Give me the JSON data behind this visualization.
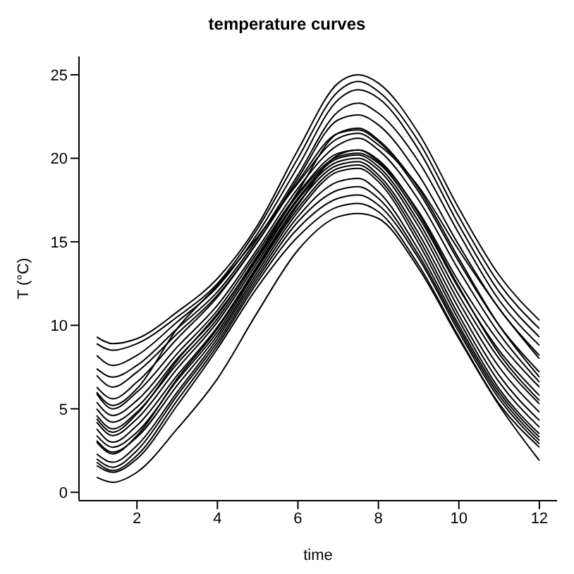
{
  "chart_data": {
    "type": "line",
    "title": "temperature curves",
    "xlabel": "time",
    "ylabel": "T (°C)",
    "x": [
      1,
      1.4,
      2,
      3,
      4,
      5,
      6,
      7,
      7.5,
      8,
      9,
      10,
      11,
      12
    ],
    "xlim": [
      0.56,
      12.44
    ],
    "xticks": [
      2,
      4,
      6,
      8,
      10,
      12
    ],
    "ylim": [
      -0.5,
      26.1
    ],
    "yticks": [
      0,
      5,
      10,
      15,
      20,
      25
    ],
    "grid": false,
    "series": [
      {
        "color": "#000000",
        "values": [
          9.3,
          8.9,
          9.2,
          10.8,
          12.8,
          16,
          20.5,
          24.5,
          25,
          24.5,
          21.5,
          17,
          13,
          10.3
        ]
      },
      {
        "color": "#000000",
        "values": [
          8.9,
          8.5,
          8.9,
          10.5,
          12.5,
          15.8,
          20,
          24,
          24.6,
          24,
          21,
          16.5,
          12.5,
          9.8
        ]
      },
      {
        "color": "#000000",
        "values": [
          8.2,
          7.6,
          8.2,
          10.2,
          12.3,
          15.5,
          19.5,
          23.5,
          24.1,
          23.6,
          20.5,
          16,
          12,
          9.3
        ]
      },
      {
        "color": "#000000",
        "values": [
          7.4,
          6.9,
          7.6,
          9.8,
          12,
          15.2,
          19,
          22.8,
          23.3,
          22.7,
          19.8,
          15.5,
          11.5,
          8.8
        ]
      },
      {
        "color": "#000000",
        "values": [
          7,
          6.3,
          7.2,
          9.5,
          11.8,
          15,
          18.8,
          22.3,
          22.6,
          22,
          19,
          14.8,
          11,
          8.2
        ]
      },
      {
        "color": "#000000",
        "values": [
          6.3,
          5.6,
          6.6,
          9.2,
          11.7,
          15,
          18.6,
          21.5,
          21.7,
          21,
          18,
          13.8,
          10,
          7.2
        ]
      },
      {
        "color": "#000000",
        "values": [
          5.9,
          5,
          6,
          8.7,
          11.2,
          14.6,
          18.2,
          20.8,
          21.2,
          20.5,
          17.5,
          13.3,
          9.5,
          6.6
        ]
      },
      {
        "color": "#000000",
        "values": [
          5.4,
          4.6,
          5.5,
          8.3,
          10.9,
          14.4,
          17.9,
          20.3,
          20.5,
          19.8,
          16.8,
          12.6,
          9,
          6.3
        ]
      },
      {
        "color": "#000000",
        "values": [
          5,
          4.2,
          5.1,
          8,
          10.6,
          14.2,
          17.8,
          20.1,
          20.3,
          19.7,
          16.5,
          12.2,
          8.5,
          5.8
        ]
      },
      {
        "color": "#000000",
        "values": [
          4.6,
          3.8,
          4.8,
          7.7,
          10.4,
          14,
          17.6,
          20,
          20.2,
          19.5,
          16.2,
          11.8,
          8,
          5.3
        ]
      },
      {
        "color": "#000000",
        "values": [
          4.2,
          3.4,
          4.4,
          7.4,
          10.2,
          13.8,
          17.5,
          19.8,
          20,
          19.3,
          15.9,
          11.4,
          7.5,
          4.8
        ]
      },
      {
        "color": "#000000",
        "values": [
          3.8,
          3,
          4,
          7,
          9.9,
          13.6,
          17.3,
          19.6,
          19.8,
          19,
          15.5,
          11,
          7,
          4.3
        ]
      },
      {
        "color": "#000000",
        "values": [
          3.4,
          2.7,
          3.6,
          6.7,
          9.6,
          13.4,
          17,
          19.4,
          19.6,
          18.8,
          15.2,
          10.6,
          6.6,
          3.9
        ]
      },
      {
        "color": "#000000",
        "values": [
          3.1,
          2.4,
          3.3,
          6.4,
          9.4,
          13.2,
          16.8,
          19.2,
          19.4,
          18.6,
          14.9,
          10.3,
          6.2,
          3.5
        ]
      },
      {
        "color": "#000000",
        "values": [
          2.3,
          1.8,
          2.8,
          6,
          9.2,
          13,
          16.5,
          18.6,
          18.8,
          18,
          14.5,
          10,
          6,
          3.3
        ]
      },
      {
        "color": "#000000",
        "values": [
          2,
          1.5,
          2.5,
          5.8,
          9,
          12.8,
          16.2,
          18.1,
          18.3,
          17.6,
          14.2,
          9.8,
          5.8,
          3.1
        ]
      },
      {
        "color": "#000000",
        "values": [
          1.8,
          1.3,
          2.2,
          5.5,
          8.8,
          12.6,
          15.8,
          17.6,
          17.8,
          17.2,
          14,
          9.6,
          5.6,
          2.9
        ]
      },
      {
        "color": "#000000",
        "values": [
          1.6,
          1.2,
          2,
          5.2,
          8.6,
          12.3,
          15.3,
          17.1,
          17.3,
          16.8,
          13.6,
          9.3,
          5.3,
          2.7
        ]
      },
      {
        "color": "#000000",
        "values": [
          0.9,
          0.6,
          1.2,
          3.8,
          6.8,
          10.8,
          14.5,
          16.5,
          16.7,
          16.4,
          13.4,
          9.2,
          5.2,
          1.9
        ]
      },
      {
        "color": "#000000",
        "values": [
          6,
          5.2,
          6.2,
          9.8,
          12.4,
          15.3,
          18.5,
          21.2,
          21.5,
          20.8,
          18.3,
          14.5,
          11,
          8
        ]
      },
      {
        "color": "#000000",
        "values": [
          3,
          2.3,
          3.4,
          6.8,
          9.8,
          13.5,
          17.2,
          20.2,
          20.5,
          19.9,
          16.7,
          12.3,
          8.3,
          5.5
        ]
      },
      {
        "color": "#000000",
        "values": [
          4.4,
          3.6,
          4.7,
          7.9,
          10.7,
          14.1,
          18,
          21.5,
          21.8,
          21.1,
          18.2,
          14,
          10,
          6.9
        ]
      }
    ]
  }
}
